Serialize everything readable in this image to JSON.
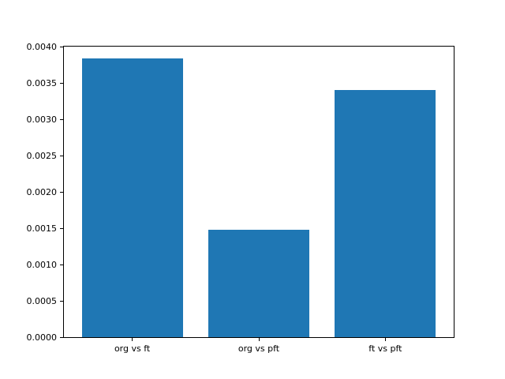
{
  "chart_data": {
    "type": "bar",
    "categories": [
      "org vs ft",
      "org vs pft",
      "ft vs pft"
    ],
    "values": [
      0.00384,
      0.00148,
      0.0034
    ],
    "title": "",
    "xlabel": "",
    "ylabel": "",
    "ylim": [
      0,
      0.004
    ],
    "yticks": [
      0.0,
      0.0005,
      0.001,
      0.0015,
      0.002,
      0.0025,
      0.003,
      0.0035,
      0.004
    ],
    "ytick_labels": [
      "0.0000",
      "0.0005",
      "0.0010",
      "0.0015",
      "0.0020",
      "0.0025",
      "0.0030",
      "0.0035",
      "0.0040"
    ],
    "bar_color": "#1f77b4",
    "axis_color": "#000000",
    "background_color": "#ffffff",
    "grid": false,
    "legend": "none",
    "bar_width_fraction": 0.8
  }
}
